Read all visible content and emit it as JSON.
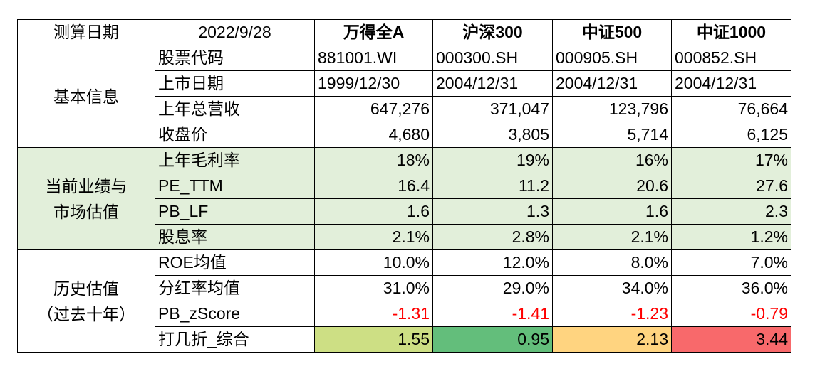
{
  "header": {
    "label": "测算日期",
    "date": "2022/9/28",
    "indices": [
      "万得全A",
      "沪深300",
      "中证500",
      "中证1000"
    ]
  },
  "sections": [
    {
      "title": "基本信息",
      "rows": [
        {
          "label": "股票代码",
          "values": [
            "881001.WI",
            "000300.SH",
            "000905.SH",
            "000852.SH"
          ]
        },
        {
          "label": "上市日期",
          "values": [
            "1999/12/30",
            "2004/12/31",
            "2004/12/31",
            "2004/12/31"
          ]
        },
        {
          "label": "上年总营收",
          "values": [
            "647,276",
            "371,047",
            "123,796",
            "76,664"
          ]
        },
        {
          "label": "收盘价",
          "values": [
            "4,680",
            "3,805",
            "5,714",
            "6,125"
          ]
        }
      ]
    },
    {
      "title": "当前业绩与市场估值",
      "title_lines": [
        "当前业绩与",
        "市场估值"
      ],
      "background": "#e2efda",
      "rows": [
        {
          "label": "上年毛利率",
          "values": [
            "18%",
            "19%",
            "16%",
            "17%"
          ]
        },
        {
          "label": "PE_TTM",
          "values": [
            "16.4",
            "11.2",
            "20.6",
            "27.6"
          ]
        },
        {
          "label": "PB_LF",
          "values": [
            "1.6",
            "1.3",
            "1.6",
            "2.3"
          ]
        },
        {
          "label": "股息率",
          "values": [
            "2.1%",
            "2.8%",
            "2.1%",
            "1.2%"
          ]
        }
      ]
    },
    {
      "title": "历史估值（过去十年）",
      "title_lines": [
        "历史估值",
        "（过去十年）"
      ],
      "rows": [
        {
          "label": "ROE均值",
          "values": [
            "10.0%",
            "12.0%",
            "8.0%",
            "7.0%"
          ]
        },
        {
          "label": "分红率均值",
          "values": [
            "31.0%",
            "29.0%",
            "34.0%",
            "36.0%"
          ]
        },
        {
          "label": "PB_zScore",
          "values": [
            "-1.31",
            "-1.41",
            "-1.23",
            "-0.79"
          ],
          "text_color": "#ff0000"
        },
        {
          "label": "打几折_综合",
          "values": [
            "1.55",
            "0.95",
            "2.13",
            "3.44"
          ],
          "cell_colors": [
            "#cddf84",
            "#63be7b",
            "#ffd480",
            "#f8696b"
          ]
        }
      ]
    }
  ]
}
